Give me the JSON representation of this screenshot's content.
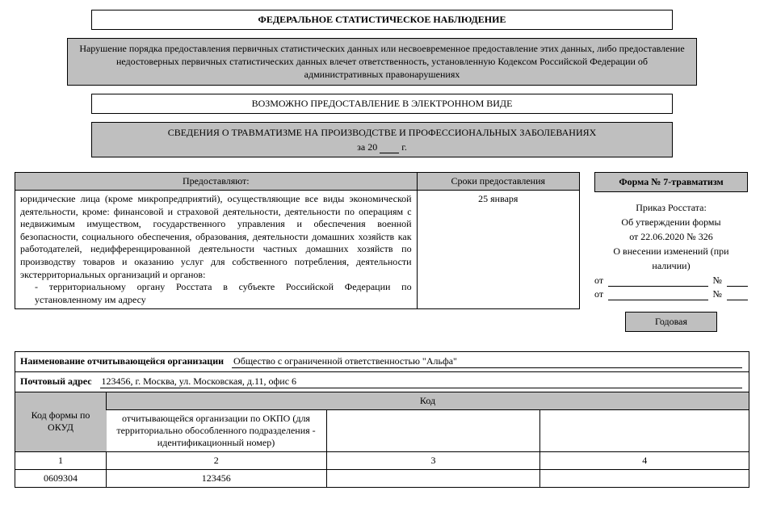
{
  "header": {
    "title": "ФЕДЕРАЛЬНОЕ СТАТИСТИЧЕСКОЕ НАБЛЮДЕНИЕ",
    "warning": "Нарушение порядка предоставления первичных статистических данных или несвоевременное предоставление этих данных, либо предоставление недостоверных первичных статистических данных влечет ответственность, установленную Кодексом Российской Федерации об административных правонарушениях",
    "electronic": "ВОЗМОЖНО ПРЕДОСТАВЛЕНИЕ В ЭЛЕКТРОННОМ ВИДЕ",
    "info_title": "СВЕДЕНИЯ О ТРАВМАТИЗМЕ НА ПРОИЗВОДСТВЕ И ПРОФЕССИОНАЛЬНЫХ ЗАБОЛЕВАНИЯХ",
    "year_prefix": "за 20",
    "year_suffix": "г."
  },
  "provide": {
    "col1_header": "Предоставляют:",
    "col2_header": "Сроки предоставления",
    "body": "юридические лица (кроме микропредприятий), осуществляющие все виды экономической деятельности, кроме: финансовой и страховой деятельности, деятельности по операциям с недвижимым имуществом, государственного управления и обеспечения военной безопасности, социального обеспечения, образования, деятельности домашних хозяйств как работодателей, недифференцированной деятельности частных домашних хозяйств по производству товаров и оказанию услуг для собственного потребления, деятельности экстерриториальных организаций и органов:",
    "sub": "- территориальному органу Росстата в субъекте Российской Федерации по установленному им адресу",
    "deadline": "25 января"
  },
  "right": {
    "form_no": "Форма № 7-травматизм",
    "line1": "Приказ Росстата:",
    "line2": "Об утверждении формы",
    "line3": "от 22.06.2020 № 326",
    "line4": "О внесении изменений (при наличии)",
    "from_label": "от",
    "num_label": "№",
    "annual": "Годовая"
  },
  "bottom": {
    "org_label": "Наименование отчитывающейся организации",
    "org_value": "Общество с ограниченной ответственностью \"Альфа\"",
    "addr_label": "Почтовый адрес",
    "addr_value": "123456, г. Москва, ул. Московская, д.11, офис 6",
    "codes": {
      "h1": "Код формы по ОКУД",
      "h2_top": "Код",
      "h2": "отчитывающейся организации по ОКПО (для территориально обособленного подразделения - идентификационный номер)",
      "n1": "1",
      "n2": "2",
      "n3": "3",
      "n4": "4",
      "v1": "0609304",
      "v2": "123456",
      "v3": "",
      "v4": ""
    }
  }
}
